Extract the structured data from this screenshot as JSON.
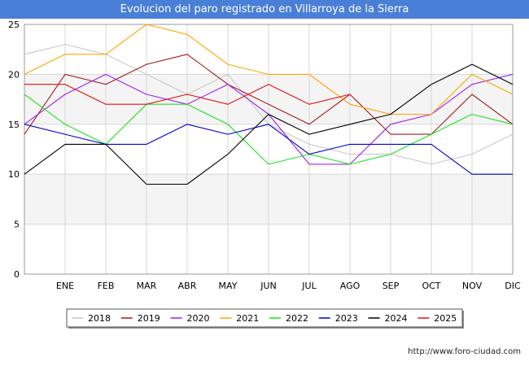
{
  "title": "Evolucion del paro registrado en Villarroya de la Sierra",
  "footer": "http://www.foro-ciudad.com",
  "chart_data": {
    "type": "line",
    "title": "Evolucion del paro registrado en Villarroya de la Sierra",
    "x": [
      "",
      "ENE",
      "FEB",
      "MAR",
      "ABR",
      "MAY",
      "JUN",
      "JUL",
      "AGO",
      "SEP",
      "OCT",
      "NOV",
      "DIC"
    ],
    "xlabel": "",
    "ylabel": "",
    "ylim": [
      0,
      25
    ],
    "yticks": [
      0,
      5,
      10,
      15,
      20,
      25
    ],
    "grid": true,
    "legend_position": "bottom",
    "series": [
      {
        "name": "2018",
        "color": "#c8c8c8",
        "values": [
          22,
          23,
          22,
          20,
          18,
          20,
          15,
          13,
          12,
          12,
          11,
          12,
          14
        ]
      },
      {
        "name": "2019",
        "color": "#a31a1a",
        "values": [
          14,
          20,
          19,
          21,
          22,
          19,
          17,
          15,
          18,
          14,
          14,
          18,
          15
        ]
      },
      {
        "name": "2020",
        "color": "#a020f0",
        "values": [
          15,
          18,
          20,
          18,
          17,
          19,
          16,
          11,
          11,
          15,
          16,
          19,
          20
        ]
      },
      {
        "name": "2021",
        "color": "#ffa500",
        "values": [
          20,
          22,
          22,
          25,
          24,
          21,
          20,
          20,
          17,
          16,
          16,
          20,
          18
        ]
      },
      {
        "name": "2022",
        "color": "#1ee21e",
        "values": [
          18,
          15,
          13,
          17,
          17,
          15,
          11,
          12,
          11,
          12,
          14,
          16,
          15
        ]
      },
      {
        "name": "2023",
        "color": "#0000cc",
        "values": [
          15,
          14,
          13,
          13,
          15,
          14,
          15,
          12,
          13,
          13,
          13,
          10,
          10
        ]
      },
      {
        "name": "2024",
        "color": "#000000",
        "values": [
          10,
          13,
          13,
          9,
          9,
          12,
          16,
          14,
          15,
          16,
          19,
          21,
          19
        ]
      },
      {
        "name": "2025",
        "color": "#e01010",
        "values": [
          19,
          19,
          17,
          17,
          18,
          17,
          19,
          17,
          18,
          null,
          null,
          null,
          null
        ]
      }
    ]
  }
}
